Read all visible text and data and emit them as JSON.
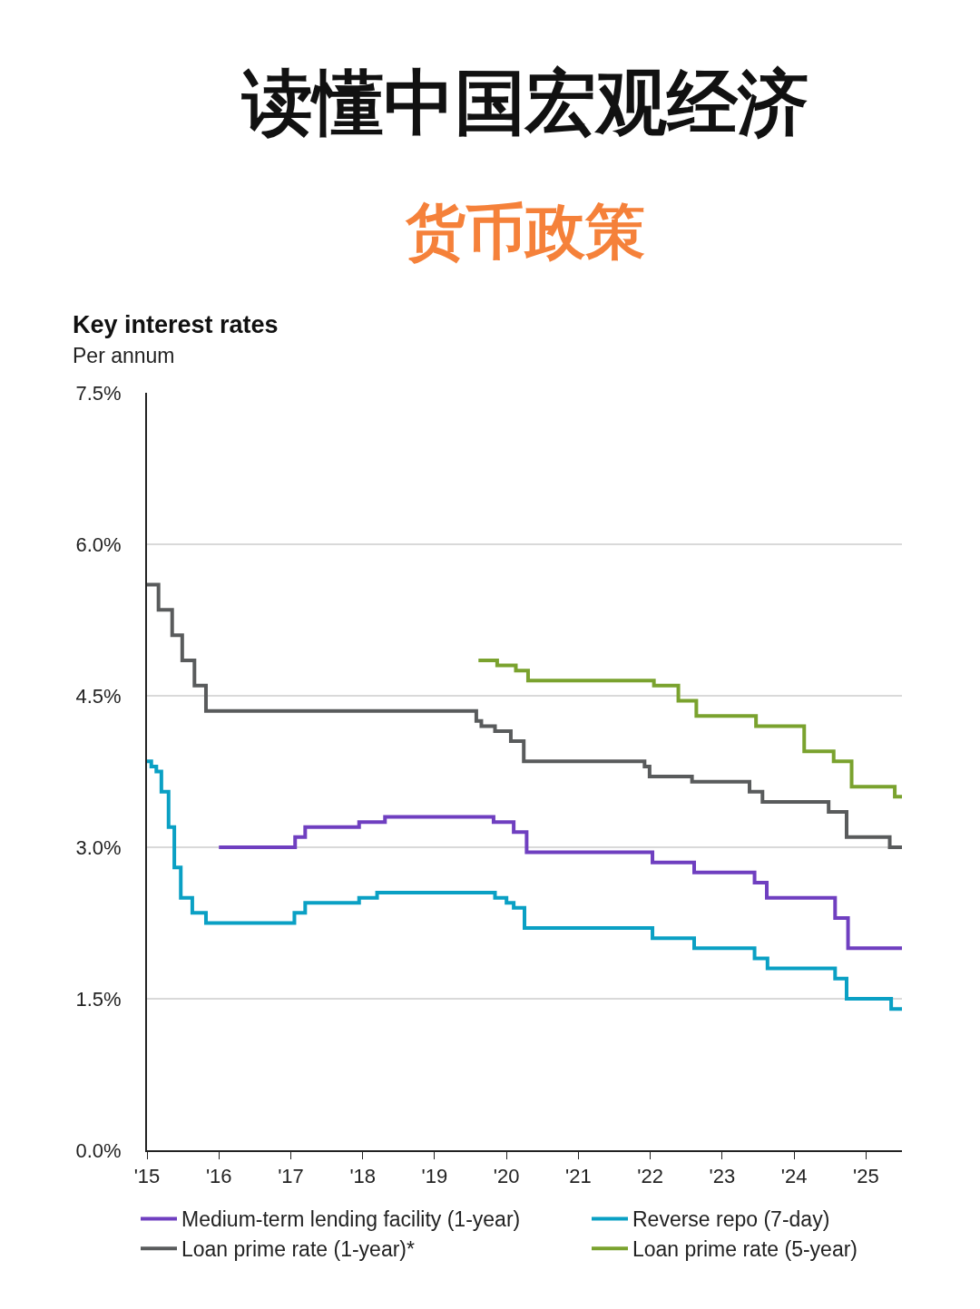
{
  "chart_data": {
    "type": "step",
    "title": "Key interest rates",
    "subtitle": "Per annum",
    "annotations": [
      "读懂中国宏观经济",
      "货币政策"
    ],
    "xlim": [
      2015,
      2025.5
    ],
    "xticks": [
      {
        "value": 2015,
        "label": "'15"
      },
      {
        "value": 2016,
        "label": "'16"
      },
      {
        "value": 2017,
        "label": "'17"
      },
      {
        "value": 2018,
        "label": "'18"
      },
      {
        "value": 2019,
        "label": "'19"
      },
      {
        "value": 2020,
        "label": "'20"
      },
      {
        "value": 2021,
        "label": "'21"
      },
      {
        "value": 2022,
        "label": "'22"
      },
      {
        "value": 2023,
        "label": "'23"
      },
      {
        "value": 2024,
        "label": "'24"
      },
      {
        "value": 2025,
        "label": "'25"
      }
    ],
    "ylim": [
      0,
      7.5
    ],
    "yticks": [
      {
        "value": 0,
        "label": "0.0%"
      },
      {
        "value": 1.5,
        "label": "1.5%"
      },
      {
        "value": 3,
        "label": "3.0%"
      },
      {
        "value": 4.5,
        "label": "4.5%"
      },
      {
        "value": 6,
        "label": "6.0%"
      },
      {
        "value": 7.5,
        "label": "7.5%"
      }
    ],
    "grid": "y",
    "legend": "bottom",
    "marker": "none",
    "line_style": "solid",
    "series": [
      {
        "name": "Medium-term lending facility (1-year)",
        "color": "#6f3fc0",
        "x": [
          2016.0,
          2017.06,
          2017.2,
          2017.95,
          2018.31,
          2019.82,
          2020.1,
          2020.28,
          2022.03,
          2022.61,
          2023.45,
          2023.62,
          2024.57,
          2024.75,
          2025.5
        ],
        "values": [
          3.0,
          3.1,
          3.2,
          3.25,
          3.3,
          3.25,
          3.15,
          2.95,
          2.85,
          2.75,
          2.65,
          2.5,
          2.3,
          2.0,
          2.0
        ]
      },
      {
        "name": "Reverse repo (7-day)",
        "color": "#0aa0c4",
        "x": [
          2015.0,
          2015.06,
          2015.13,
          2015.2,
          2015.3,
          2015.38,
          2015.47,
          2015.63,
          2015.82,
          2017.05,
          2017.2,
          2017.95,
          2018.2,
          2019.84,
          2020.0,
          2020.1,
          2020.25,
          2022.03,
          2022.61,
          2023.45,
          2023.63,
          2024.57,
          2024.73,
          2025.35,
          2025.5
        ],
        "values": [
          3.85,
          3.8,
          3.75,
          3.55,
          3.2,
          2.8,
          2.5,
          2.35,
          2.25,
          2.35,
          2.45,
          2.5,
          2.55,
          2.5,
          2.45,
          2.4,
          2.2,
          2.1,
          2.0,
          1.9,
          1.8,
          1.7,
          1.5,
          1.4,
          1.4
        ]
      },
      {
        "name": "Loan prime rate (1-year)*",
        "color": "#595b5c",
        "x": [
          2015.0,
          2015.16,
          2015.35,
          2015.49,
          2015.66,
          2015.82,
          2019.58,
          2019.65,
          2019.84,
          2020.06,
          2020.24,
          2021.92,
          2021.99,
          2022.58,
          2023.38,
          2023.56,
          2024.48,
          2024.73,
          2025.33,
          2025.5
        ],
        "values": [
          5.6,
          5.35,
          5.1,
          4.85,
          4.6,
          4.35,
          4.25,
          4.2,
          4.15,
          4.05,
          3.85,
          3.8,
          3.7,
          3.65,
          3.55,
          3.45,
          3.35,
          3.1,
          3.0,
          3.0
        ]
      },
      {
        "name": "Loan prime rate (5-year)",
        "color": "#7aa22e",
        "x": [
          2019.61,
          2019.87,
          2020.13,
          2020.3,
          2022.05,
          2022.39,
          2022.64,
          2023.47,
          2024.14,
          2024.55,
          2024.8,
          2025.4,
          2025.5
        ],
        "values": [
          4.85,
          4.8,
          4.75,
          4.65,
          4.6,
          4.45,
          4.3,
          4.2,
          3.95,
          3.85,
          3.6,
          3.5,
          3.5
        ]
      }
    ]
  }
}
